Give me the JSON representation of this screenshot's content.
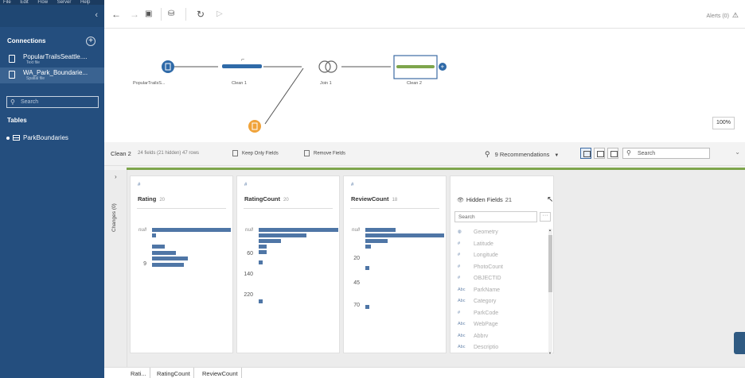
{
  "menubar": [
    "File",
    "Edit",
    "Flow",
    "Server",
    "Help"
  ],
  "sidebar": {
    "collapse_icon": "chevron-left",
    "connections_heading": "Connections",
    "add_icon": "+",
    "connections": [
      {
        "name": "PopularTrailsSeattle....",
        "type": "Text file"
      },
      {
        "name": "WA_Park_Boundarie...",
        "type": "Spatial file"
      }
    ],
    "search_placeholder": "Search",
    "tables_heading": "Tables",
    "tables": [
      "ParkBoundaries"
    ]
  },
  "toolbar": {
    "alerts_label": "Alerts (0)"
  },
  "flow": {
    "nodes": [
      "PopularTrailsS...",
      "Clean 1",
      "Join 1",
      "Clean 2"
    ],
    "zoom": "100%"
  },
  "step": {
    "title": "Clean 2",
    "fields_info": "24 fields (21 hidden) 47 rows",
    "keep_only_label": "Keep Only Fields",
    "remove_label": "Remove Fields",
    "recommendations_label": "9 Recommendations",
    "search_placeholder": "Search"
  },
  "changes_label": "Changes (0)",
  "profile": {
    "cards": [
      {
        "type_icon": "#",
        "name": "Rating",
        "count": "20",
        "labels": [
          "null",
          "9"
        ]
      },
      {
        "type_icon": "#",
        "name": "RatingCount",
        "count": "20",
        "labels": [
          "null",
          "60",
          "140",
          "220"
        ]
      },
      {
        "type_icon": "#",
        "name": "ReviewCount",
        "count": "18",
        "labels": [
          "null",
          "20",
          "45",
          "70"
        ]
      }
    ],
    "hidden_fields": {
      "title": "Hidden Fields",
      "count": "21",
      "search_placeholder": "Search",
      "more_icon": "···",
      "items": [
        {
          "icon": "globe",
          "name": "Geometry"
        },
        {
          "icon": "#",
          "name": "Latitude"
        },
        {
          "icon": "#",
          "name": "Longitude"
        },
        {
          "icon": "#",
          "name": "PhotoCount"
        },
        {
          "icon": "#",
          "name": "OBJECTID"
        },
        {
          "icon": "Abc",
          "name": "ParkName"
        },
        {
          "icon": "Abc",
          "name": "Category"
        },
        {
          "icon": "#",
          "name": "ParkCode"
        },
        {
          "icon": "Abc",
          "name": "WebPage"
        },
        {
          "icon": "Abc",
          "name": "Abbrv"
        },
        {
          "icon": "Abc",
          "name": "Descriptio"
        }
      ]
    }
  },
  "bottom_tabs": [
    "Rati...",
    "RatingCount",
    "ReviewCount"
  ],
  "colors": {
    "sidebar": "#244e7e",
    "bar": "#4f76a6",
    "accent_green": "#7ea54c",
    "node_blue": "#2f6aa8",
    "node_orange": "#f0a33a"
  }
}
